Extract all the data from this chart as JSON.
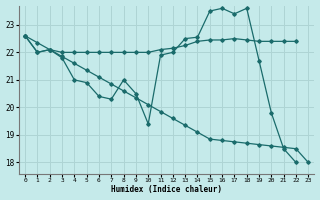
{
  "xlabel": "Humidex (Indice chaleur)",
  "background_color": "#c5eaea",
  "grid_color": "#aed4d4",
  "line_color": "#1a6b6b",
  "xlim": [
    -0.5,
    23.5
  ],
  "ylim": [
    17.6,
    23.7
  ],
  "yticks": [
    18,
    19,
    20,
    21,
    22,
    23
  ],
  "xticks": [
    0,
    1,
    2,
    3,
    4,
    5,
    6,
    7,
    8,
    9,
    10,
    11,
    12,
    13,
    14,
    15,
    16,
    17,
    18,
    19,
    20,
    21,
    22,
    23
  ],
  "series": [
    {
      "x": [
        0,
        1,
        2,
        3,
        4,
        5,
        6,
        7,
        8,
        9,
        10,
        11,
        12,
        13,
        14,
        15,
        16,
        17,
        18,
        19,
        20,
        21,
        22
      ],
      "y": [
        22.6,
        22.0,
        22.1,
        22.0,
        22.0,
        22.0,
        22.0,
        22.0,
        22.0,
        22.0,
        22.0,
        22.1,
        22.15,
        22.25,
        22.4,
        22.45,
        22.45,
        22.5,
        22.45,
        22.4,
        22.4,
        22.4,
        22.4
      ]
    },
    {
      "x": [
        0,
        1,
        2,
        3,
        4,
        5,
        6,
        7,
        8,
        9,
        10,
        11,
        12,
        13,
        14,
        15,
        16,
        17,
        18,
        19,
        20,
        21,
        22,
        23
      ],
      "y": [
        22.6,
        22.35,
        22.1,
        21.85,
        21.6,
        21.35,
        21.1,
        20.85,
        20.6,
        20.35,
        20.1,
        19.85,
        19.6,
        19.35,
        19.1,
        18.85,
        18.8,
        18.75,
        18.7,
        18.65,
        18.6,
        18.55,
        18.5,
        18.0
      ]
    },
    {
      "x": [
        0,
        1,
        2,
        3,
        4,
        5,
        6,
        7,
        8,
        9,
        10,
        11,
        12,
        13,
        14,
        15,
        16,
        17,
        18,
        19,
        20,
        21,
        22
      ],
      "y": [
        22.6,
        22.0,
        22.1,
        21.8,
        21.0,
        20.9,
        20.4,
        20.3,
        21.0,
        20.5,
        19.4,
        21.9,
        22.0,
        22.5,
        22.55,
        23.5,
        23.6,
        23.4,
        23.6,
        21.7,
        19.8,
        18.5,
        18.0
      ]
    }
  ]
}
